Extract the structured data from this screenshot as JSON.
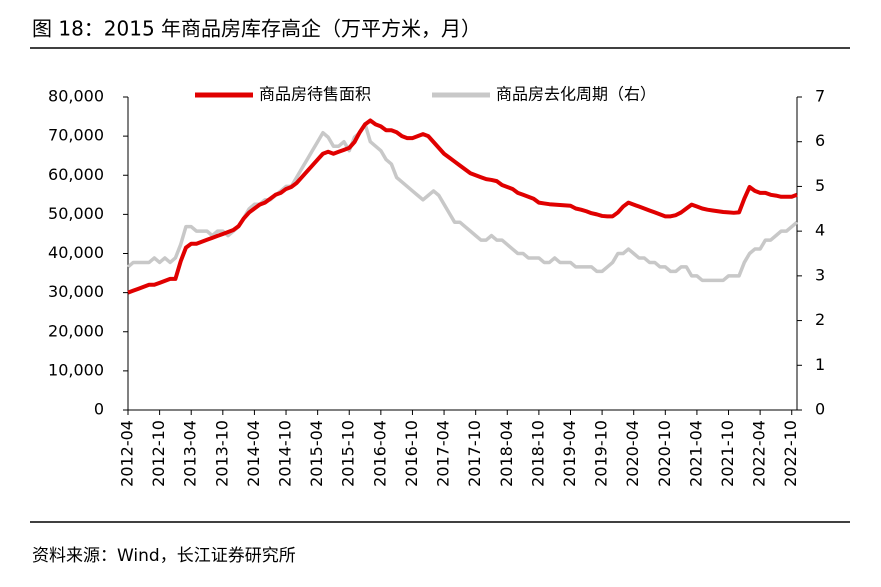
{
  "chart_data": {
    "type": "line",
    "title": "图 18：2015 年商品房库存高企（万平方米，月）",
    "source": "资料来源：Wind，长江证券研究所",
    "categories": [
      "2012-04",
      null,
      null,
      null,
      null,
      null,
      "2012-10",
      null,
      null,
      null,
      null,
      null,
      "2013-04",
      null,
      null,
      null,
      null,
      null,
      "2013-10",
      null,
      null,
      null,
      null,
      null,
      "2014-04",
      null,
      null,
      null,
      null,
      null,
      "2014-10",
      null,
      null,
      null,
      null,
      null,
      "2015-04",
      null,
      null,
      null,
      null,
      null,
      "2015-10",
      null,
      null,
      null,
      null,
      null,
      "2016-04",
      null,
      null,
      null,
      null,
      null,
      "2016-10",
      null,
      null,
      null,
      null,
      null,
      "2017-04",
      null,
      null,
      null,
      null,
      null,
      "2017-10",
      null,
      null,
      null,
      null,
      null,
      "2018-04",
      null,
      null,
      null,
      null,
      null,
      "2018-10",
      null,
      null,
      null,
      null,
      null,
      "2019-04",
      null,
      null,
      null,
      null,
      null,
      "2019-10",
      null,
      null,
      null,
      null,
      null,
      "2020-04",
      null,
      null,
      null,
      null,
      null,
      "2020-10",
      null,
      null,
      null,
      null,
      null,
      "2021-04",
      null,
      null,
      null,
      null,
      null,
      "2021-10",
      null,
      null,
      null,
      null,
      null,
      "2022-04",
      null,
      null,
      null,
      null,
      null,
      "2022-10",
      null
    ],
    "series": [
      {
        "name": "商品房待售面积",
        "color": "#e00000",
        "axis": "y",
        "values": [
          30000,
          30500,
          31000,
          31500,
          32000,
          32000,
          32500,
          33000,
          33500,
          33500,
          38000,
          41500,
          42500,
          42500,
          43000,
          43500,
          44000,
          44500,
          45000,
          45500,
          46000,
          47000,
          49000,
          50500,
          51500,
          52500,
          53000,
          54000,
          55000,
          55500,
          56500,
          57000,
          58000,
          59500,
          61000,
          62500,
          64000,
          65500,
          66000,
          65500,
          66000,
          66500,
          67000,
          68500,
          71000,
          73000,
          74000,
          73000,
          72500,
          71500,
          71500,
          71000,
          70000,
          69500,
          69500,
          70000,
          70500,
          70000,
          68500,
          67000,
          65500,
          64500,
          63500,
          62500,
          61500,
          60500,
          60000,
          59500,
          59000,
          58800,
          58500,
          57500,
          57000,
          56500,
          55500,
          55000,
          54500,
          54000,
          53000,
          52800,
          52600,
          52500,
          52400,
          52300,
          52200,
          51500,
          51200,
          50800,
          50300,
          50000,
          49600,
          49500,
          49500,
          50500,
          52000,
          53000,
          52500,
          52000,
          51500,
          51000,
          50500,
          50000,
          49500,
          49500,
          49800,
          50500,
          51500,
          52500,
          52000,
          51500,
          51200,
          51000,
          50800,
          50600,
          50500,
          50400,
          50500,
          54000,
          57000,
          56000,
          55500,
          55500,
          55000,
          54800,
          54500,
          54500,
          54500,
          55000
        ]
      },
      {
        "name": "商品房去化周期（右）",
        "color": "#c8c8c8",
        "axis": "y2",
        "values": [
          3.2,
          3.3,
          3.3,
          3.3,
          3.3,
          3.4,
          3.3,
          3.4,
          3.3,
          3.4,
          3.7,
          4.1,
          4.1,
          4.0,
          4.0,
          4.0,
          3.9,
          4.0,
          4.0,
          3.9,
          4.0,
          4.1,
          4.3,
          4.5,
          4.6,
          4.6,
          4.7,
          4.7,
          4.8,
          4.9,
          5.0,
          5.0,
          5.2,
          5.4,
          5.6,
          5.8,
          6.0,
          6.2,
          6.1,
          5.9,
          5.9,
          6.0,
          5.8,
          6.1,
          6.2,
          6.4,
          6.0,
          5.9,
          5.8,
          5.6,
          5.5,
          5.2,
          5.1,
          5.0,
          4.9,
          4.8,
          4.7,
          4.8,
          4.9,
          4.8,
          4.6,
          4.4,
          4.2,
          4.2,
          4.1,
          4.0,
          3.9,
          3.8,
          3.8,
          3.9,
          3.8,
          3.8,
          3.7,
          3.6,
          3.5,
          3.5,
          3.4,
          3.4,
          3.4,
          3.3,
          3.3,
          3.4,
          3.3,
          3.3,
          3.3,
          3.2,
          3.2,
          3.2,
          3.2,
          3.1,
          3.1,
          3.2,
          3.3,
          3.5,
          3.5,
          3.6,
          3.5,
          3.4,
          3.4,
          3.3,
          3.3,
          3.2,
          3.2,
          3.1,
          3.1,
          3.2,
          3.2,
          3.0,
          3.0,
          2.9,
          2.9,
          2.9,
          2.9,
          2.9,
          3.0,
          3.0,
          3.0,
          3.3,
          3.5,
          3.6,
          3.6,
          3.8,
          3.8,
          3.9,
          4.0,
          4.0,
          4.1,
          4.2
        ]
      }
    ],
    "ylim": [
      0,
      80000
    ],
    "yticks": [
      0,
      {
        "value": 10000,
        "label": "10,000"
      },
      {
        "value": 20000,
        "label": "20,000"
      },
      {
        "value": 30000,
        "label": "30,000"
      },
      {
        "value": 40000,
        "label": "40,000"
      },
      {
        "value": 50000,
        "label": "50,000"
      },
      {
        "value": 60000,
        "label": "60,000"
      },
      {
        "value": 70000,
        "label": "70,000"
      },
      {
        "value": 80000,
        "label": "80,000"
      }
    ],
    "y2lim": [
      0,
      7
    ],
    "y2ticks": [
      0,
      1,
      2,
      3,
      4,
      5,
      6,
      7
    ],
    "legend": "top"
  }
}
